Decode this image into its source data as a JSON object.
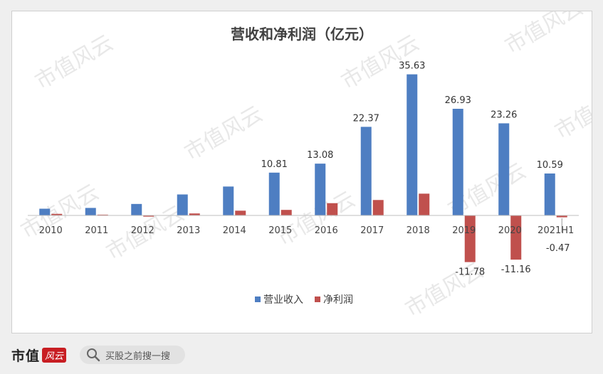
{
  "chart_data": {
    "type": "bar",
    "title": "营收和净利润（亿元）",
    "categories": [
      "2010",
      "2011",
      "2012",
      "2013",
      "2014",
      "2015",
      "2016",
      "2017",
      "2018",
      "2019",
      "2020",
      "2021H1"
    ],
    "series": [
      {
        "name": "营业收入",
        "color": "#4e7ec2",
        "values": [
          1.7,
          1.9,
          2.9,
          5.3,
          7.3,
          10.81,
          13.08,
          22.37,
          35.63,
          26.93,
          23.26,
          10.59
        ],
        "labels": [
          "",
          "",
          "",
          "",
          "",
          "10.81",
          "13.08",
          "22.37",
          "35.63",
          "26.93",
          "23.26",
          "10.59"
        ]
      },
      {
        "name": "净利润",
        "color": "#c0504d",
        "values": [
          0.4,
          0.2,
          -0.3,
          0.5,
          1.2,
          1.4,
          3.1,
          3.9,
          5.5,
          -11.78,
          -11.16,
          -0.47
        ],
        "labels": [
          "",
          "",
          "",
          "",
          "",
          "",
          "",
          "",
          "",
          "-11.78",
          "-11.16",
          "-0.47"
        ]
      }
    ],
    "ylim": [
      -16,
      40
    ],
    "grid": false,
    "legend_position": "bottom",
    "xlabel": "",
    "ylabel": ""
  },
  "watermark": "市值风云",
  "footer": {
    "brand": "市值",
    "brand_mark": "风云",
    "search_text": "买股之前搜一搜"
  }
}
